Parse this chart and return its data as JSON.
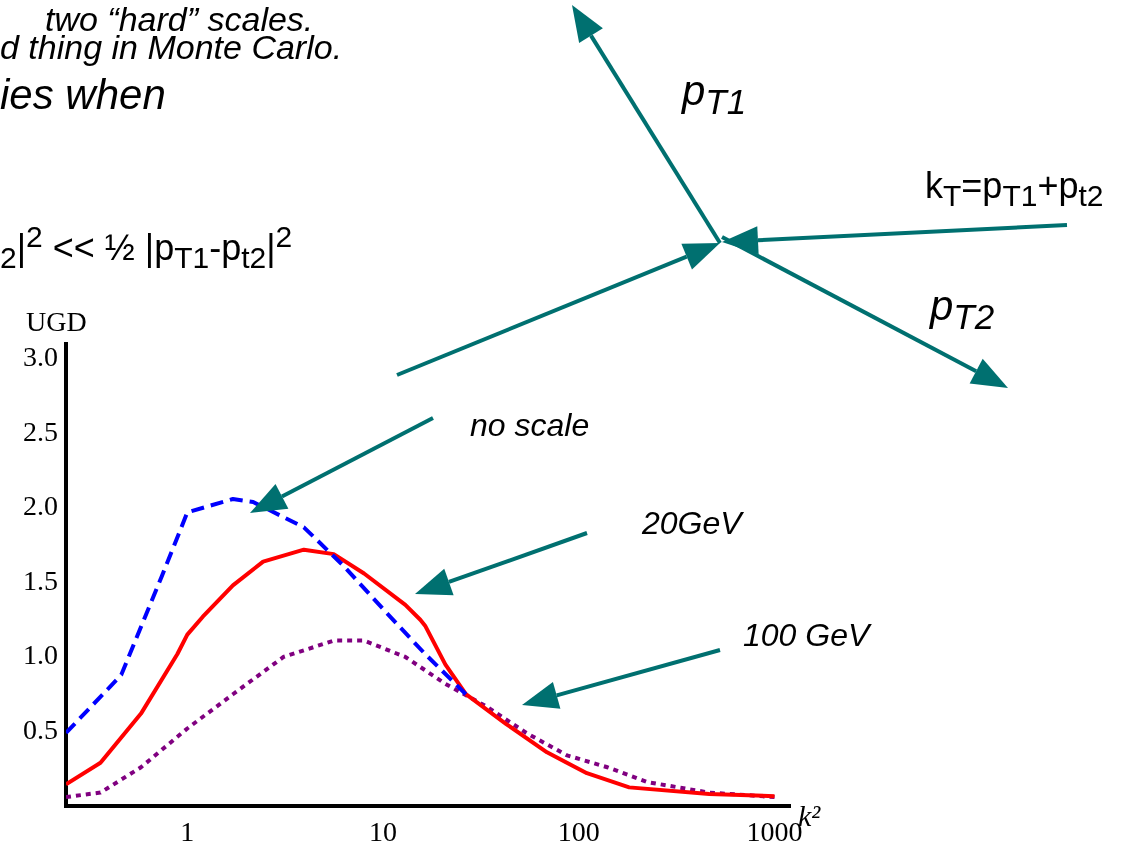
{
  "chart_data": {
    "type": "line",
    "xlabel": "k²",
    "ylabel": "UGD",
    "log": "x",
    "xlim": [
      0.24,
      1200
    ],
    "xticks": [
      1,
      10,
      100,
      1000
    ],
    "ylim": [
      0,
      3.1
    ],
    "yticks": [
      {
        "value": 0.5,
        "label": "0.5"
      },
      {
        "value": 1,
        "label": "1.0"
      },
      {
        "value": 1.5,
        "label": "1.5"
      },
      {
        "value": 2,
        "label": "2.0"
      },
      {
        "value": 2.5,
        "label": "2.5"
      },
      {
        "value": 3,
        "label": "3.0"
      }
    ],
    "marker": "none",
    "series": [
      {
        "color": "#0000ff",
        "line_style": "dashed",
        "x": [
          0.24,
          0.46,
          0.74,
          1,
          1.71,
          2.17,
          3.94,
          6.3,
          10.2,
          16.4,
          26.5
        ],
        "values": [
          0.49,
          0.88,
          1.54,
          1.97,
          2.06,
          2.04,
          1.87,
          1.61,
          1.31,
          1.02,
          0.75
        ]
      },
      {
        "color": "#ff0000",
        "line_style": "solid",
        "x": [
          0.24,
          0.36,
          0.58,
          0.89,
          1,
          1.2,
          1.71,
          2.44,
          3.94,
          5.6,
          8,
          13,
          15.5,
          16.4,
          20.8,
          26.5,
          42.6,
          68.8,
          110,
          181,
          464,
          1000
        ],
        "values": [
          0.145,
          0.29,
          0.62,
          1.02,
          1.15,
          1.27,
          1.48,
          1.64,
          1.72,
          1.69,
          1.56,
          1.35,
          1.25,
          1.21,
          0.95,
          0.75,
          0.55,
          0.36,
          0.22,
          0.125,
          0.08,
          0.066
        ]
      },
      {
        "color": "#800080",
        "line_style": "dotted",
        "x": [
          0.24,
          0.36,
          0.58,
          1,
          1.71,
          3.1,
          5.6,
          8,
          13,
          20.8,
          33.5,
          54,
          87,
          140,
          225,
          464,
          1000
        ],
        "values": [
          0.06,
          0.09,
          0.26,
          0.52,
          0.75,
          1,
          1.11,
          1.11,
          1,
          0.82,
          0.67,
          0.49,
          0.34,
          0.26,
          0.16,
          0.09,
          0.06
        ]
      }
    ],
    "annotations": [
      "two “hard” scales.",
      "d thing in Monte Carlo.",
      "ies when",
      "$_{2}$|$^{2}$ << ½ |p$_{T1}$-p$_{t2}$|$^{2}$",
      "p$_{T1}$",
      "k$_{T}$=p$_{T1}$+p$_{t2}$",
      "p$_{T2}$",
      "no scale",
      "20GeV",
      "100 GeV"
    ]
  }
}
